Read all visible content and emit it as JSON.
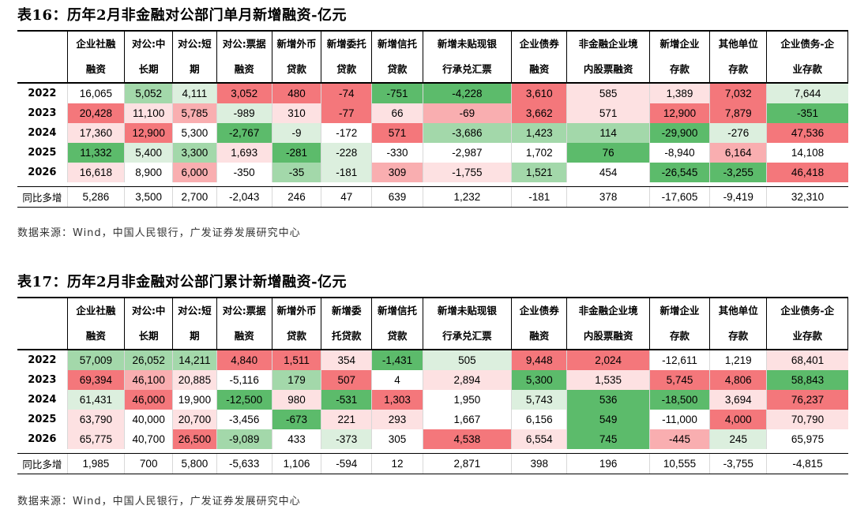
{
  "table16": {
    "title": "表16：历年2月非金融对公部门单月新增融资-亿元",
    "source": "数据来源：Wind，中国人民银行，广发证券发展研究中心",
    "headers": [
      [
        "企业社融",
        "融资"
      ],
      [
        "对公:中",
        "长期"
      ],
      [
        "对公:短",
        "期"
      ],
      [
        "对公:票据",
        "融资"
      ],
      [
        "新增外币",
        "贷款"
      ],
      [
        "新增委托",
        "贷款"
      ],
      [
        "新增信托",
        "贷款"
      ],
      [
        "新增未贴现银",
        "行承兑汇票"
      ],
      [
        "企业债券",
        "融资"
      ],
      [
        "非金融企业境",
        "内股票融资"
      ],
      [
        "新增企业",
        "存款"
      ],
      [
        "其他单位",
        "存款"
      ],
      [
        "企业债务-企",
        "业存款"
      ]
    ],
    "rows": [
      {
        "label": "2022",
        "cells": [
          [
            "16,065",
            ""
          ],
          [
            "5,052",
            "g2"
          ],
          [
            "4,111",
            "g1"
          ],
          [
            "3,052",
            "r3"
          ],
          [
            "480",
            "r3"
          ],
          [
            "-74",
            "r3"
          ],
          [
            "-751",
            "g3"
          ],
          [
            "-4,228",
            "g3"
          ],
          [
            "3,610",
            "r3"
          ],
          [
            "585",
            "r1"
          ],
          [
            "1,389",
            "r1"
          ],
          [
            "7,032",
            "r3"
          ],
          [
            "7,644",
            "g1"
          ]
        ]
      },
      {
        "label": "2023",
        "cells": [
          [
            "20,428",
            "r3"
          ],
          [
            "11,100",
            "r1"
          ],
          [
            "5,785",
            "r2"
          ],
          [
            "-989",
            "g1"
          ],
          [
            "310",
            "r1"
          ],
          [
            "-77",
            "r3"
          ],
          [
            "66",
            "r1"
          ],
          [
            "-69",
            "r2"
          ],
          [
            "3,662",
            "r3"
          ],
          [
            "571",
            "r1"
          ],
          [
            "12,900",
            "r3"
          ],
          [
            "7,879",
            "r3"
          ],
          [
            "-351",
            "g3"
          ]
        ]
      },
      {
        "label": "2024",
        "cells": [
          [
            "17,360",
            "r1"
          ],
          [
            "12,900",
            "r3"
          ],
          [
            "5,300",
            ""
          ],
          [
            "-2,767",
            "g3"
          ],
          [
            "-9",
            "g1"
          ],
          [
            "-172",
            ""
          ],
          [
            "571",
            "r3"
          ],
          [
            "-3,686",
            "g2"
          ],
          [
            "1,423",
            "g2"
          ],
          [
            "114",
            "g2"
          ],
          [
            "-29,900",
            "g3"
          ],
          [
            "-276",
            "g1"
          ],
          [
            "47,536",
            "r3"
          ]
        ]
      },
      {
        "label": "2025",
        "cells": [
          [
            "11,332",
            "g3"
          ],
          [
            "5,400",
            "g1"
          ],
          [
            "3,300",
            "g2"
          ],
          [
            "1,693",
            "r1"
          ],
          [
            "-281",
            "g3"
          ],
          [
            "-228",
            "g1"
          ],
          [
            "-330",
            ""
          ],
          [
            "-2,987",
            ""
          ],
          [
            "1,702",
            ""
          ],
          [
            "76",
            "g3"
          ],
          [
            "-8,940",
            ""
          ],
          [
            "6,164",
            "r2"
          ],
          [
            "14,108",
            ""
          ]
        ]
      },
      {
        "label": "2026",
        "cells": [
          [
            "16,618",
            "r1"
          ],
          [
            "8,900",
            ""
          ],
          [
            "6,000",
            "r2"
          ],
          [
            "-350",
            ""
          ],
          [
            "-35",
            "g2"
          ],
          [
            "-181",
            "g1"
          ],
          [
            "309",
            "r2"
          ],
          [
            "-1,755",
            "r1"
          ],
          [
            "1,521",
            "g2"
          ],
          [
            "454",
            ""
          ],
          [
            "-26,545",
            "g3"
          ],
          [
            "-3,255",
            "g3"
          ],
          [
            "46,418",
            "r3"
          ]
        ]
      },
      {
        "label": "同比多增",
        "yoy": true,
        "cells": [
          [
            "5,286",
            ""
          ],
          [
            "3,500",
            ""
          ],
          [
            "2,700",
            ""
          ],
          [
            "-2,043",
            ""
          ],
          [
            "246",
            ""
          ],
          [
            "47",
            ""
          ],
          [
            "639",
            ""
          ],
          [
            "1,232",
            ""
          ],
          [
            "-181",
            ""
          ],
          [
            "378",
            ""
          ],
          [
            "-17,605",
            ""
          ],
          [
            "-9,419",
            ""
          ],
          [
            "32,310",
            ""
          ]
        ]
      }
    ]
  },
  "table17": {
    "title": "表17：历年2月非金融对公部门累计新增融资-亿元",
    "source": "数据来源：Wind，中国人民银行，广发证券发展研究中心",
    "headers": [
      [
        "企业社融",
        "融资"
      ],
      [
        "对公:中",
        "长期"
      ],
      [
        "对公:短",
        "期"
      ],
      [
        "对公:票据",
        "融资"
      ],
      [
        "新增外币",
        "贷款"
      ],
      [
        "新增委",
        "托贷款"
      ],
      [
        "新增信托",
        "贷款"
      ],
      [
        "新增未贴现银",
        "行承兑汇票"
      ],
      [
        "企业债券",
        "融资"
      ],
      [
        "非金融企业境",
        "内股票融资"
      ],
      [
        "新增企业",
        "存款"
      ],
      [
        "其他单位",
        "存款"
      ],
      [
        "企业债务-企",
        "业存款"
      ]
    ],
    "rows": [
      {
        "label": "2022",
        "cells": [
          [
            "57,009",
            "g2"
          ],
          [
            "26,052",
            "g2"
          ],
          [
            "14,211",
            "g2"
          ],
          [
            "4,840",
            "r3"
          ],
          [
            "1,511",
            "r3"
          ],
          [
            "354",
            "r1"
          ],
          [
            "-1,431",
            "g3"
          ],
          [
            "505",
            "g1"
          ],
          [
            "9,448",
            "r3"
          ],
          [
            "2,024",
            "r3"
          ],
          [
            "-12,611",
            ""
          ],
          [
            "1,219",
            ""
          ],
          [
            "68,401",
            "r1"
          ]
        ]
      },
      {
        "label": "2023",
        "cells": [
          [
            "69,394",
            "r3"
          ],
          [
            "46,100",
            "r2"
          ],
          [
            "20,885",
            "r1"
          ],
          [
            "-5,116",
            ""
          ],
          [
            "179",
            "g2"
          ],
          [
            "507",
            "r3"
          ],
          [
            "4",
            ""
          ],
          [
            "2,894",
            "r1"
          ],
          [
            "5,300",
            "g3"
          ],
          [
            "1,535",
            "r1"
          ],
          [
            "5,745",
            "r3"
          ],
          [
            "4,806",
            "r3"
          ],
          [
            "58,843",
            "g3"
          ]
        ]
      },
      {
        "label": "2024",
        "cells": [
          [
            "61,431",
            "g1"
          ],
          [
            "46,000",
            "r3"
          ],
          [
            "19,900",
            ""
          ],
          [
            "-12,500",
            "g3"
          ],
          [
            "980",
            "r1"
          ],
          [
            "-531",
            "g3"
          ],
          [
            "1,303",
            "r3"
          ],
          [
            "1,950",
            ""
          ],
          [
            "5,743",
            "g1"
          ],
          [
            "536",
            "g3"
          ],
          [
            "-18,500",
            "g3"
          ],
          [
            "3,694",
            "r1"
          ],
          [
            "76,237",
            "r3"
          ]
        ]
      },
      {
        "label": "2025",
        "cells": [
          [
            "63,790",
            "r1"
          ],
          [
            "40,000",
            ""
          ],
          [
            "20,700",
            "r1"
          ],
          [
            "-3,456",
            ""
          ],
          [
            "-673",
            "g3"
          ],
          [
            "221",
            "r1"
          ],
          [
            "293",
            "r1"
          ],
          [
            "1,667",
            ""
          ],
          [
            "6,156",
            ""
          ],
          [
            "549",
            "g3"
          ],
          [
            "-11,000",
            ""
          ],
          [
            "4,000",
            "r3"
          ],
          [
            "70,790",
            "r1"
          ]
        ]
      },
      {
        "label": "2026",
        "cells": [
          [
            "65,775",
            "r1"
          ],
          [
            "40,700",
            ""
          ],
          [
            "26,500",
            "r3"
          ],
          [
            "-9,089",
            "g2"
          ],
          [
            "433",
            ""
          ],
          [
            "-373",
            "g1"
          ],
          [
            "305",
            ""
          ],
          [
            "4,538",
            "r3"
          ],
          [
            "6,554",
            "r1"
          ],
          [
            "745",
            "g3"
          ],
          [
            "-445",
            "r2"
          ],
          [
            "245",
            "g1"
          ],
          [
            "65,975",
            ""
          ]
        ]
      },
      {
        "label": "同比多增",
        "yoy": true,
        "cells": [
          [
            "1,985",
            ""
          ],
          [
            "700",
            ""
          ],
          [
            "5,800",
            ""
          ],
          [
            "-5,633",
            ""
          ],
          [
            "1,106",
            ""
          ],
          [
            "-594",
            ""
          ],
          [
            "12",
            ""
          ],
          [
            "2,871",
            ""
          ],
          [
            "398",
            ""
          ],
          [
            "196",
            ""
          ],
          [
            "10,555",
            ""
          ],
          [
            "-3,755",
            ""
          ],
          [
            "-4,815",
            ""
          ]
        ]
      }
    ]
  }
}
